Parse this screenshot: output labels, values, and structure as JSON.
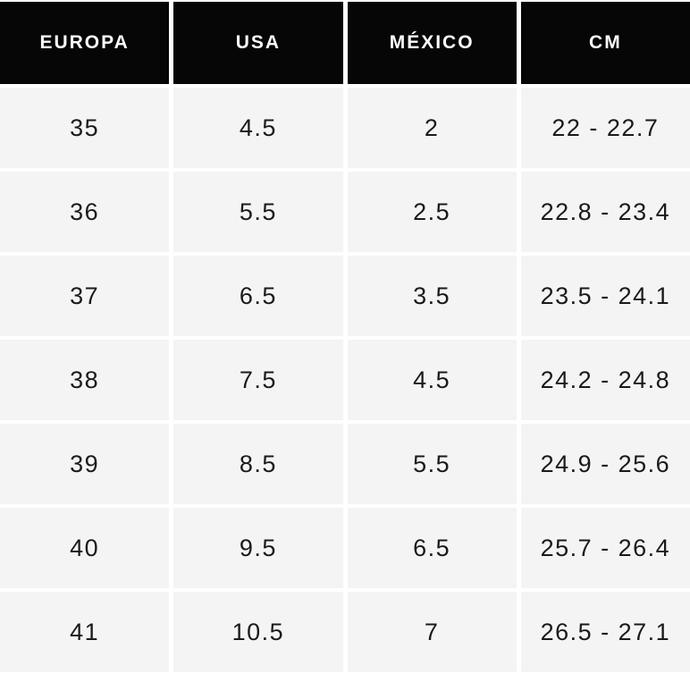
{
  "table": {
    "name": "shoe-size-conversion",
    "columns": [
      {
        "key": "europa",
        "label": "EUROPA"
      },
      {
        "key": "usa",
        "label": "USA"
      },
      {
        "key": "mexico",
        "label": "MÉXICO"
      },
      {
        "key": "cm",
        "label": "CM"
      }
    ],
    "rows": [
      {
        "europa": "35",
        "usa": "4.5",
        "mexico": "2",
        "cm": "22 - 22.7"
      },
      {
        "europa": "36",
        "usa": "5.5",
        "mexico": "2.5",
        "cm": "22.8 - 23.4"
      },
      {
        "europa": "37",
        "usa": "6.5",
        "mexico": "3.5",
        "cm": "23.5 - 24.1"
      },
      {
        "europa": "38",
        "usa": "7.5",
        "mexico": "4.5",
        "cm": "24.2 - 24.8"
      },
      {
        "europa": "39",
        "usa": "8.5",
        "mexico": "5.5",
        "cm": "24.9 - 25.6"
      },
      {
        "europa": "40",
        "usa": "9.5",
        "mexico": "6.5",
        "cm": "25.7 - 26.4"
      },
      {
        "europa": "41",
        "usa": "10.5",
        "mexico": "7",
        "cm": "26.5 - 27.1"
      }
    ]
  },
  "colors": {
    "header_bg": "#060606",
    "header_text": "#fcfcfc",
    "cell_bg": "#f4f4f4",
    "cell_text": "#1a1a1a",
    "gap": "#ffffff"
  }
}
